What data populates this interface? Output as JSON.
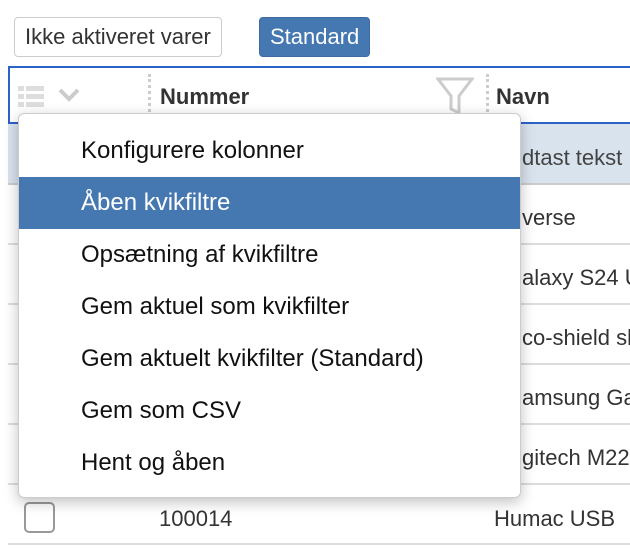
{
  "filters": {
    "inactive_label": "Ikke aktiveret varer",
    "standard_label": "Standard"
  },
  "grid": {
    "columns": [
      {
        "label": "Nummer"
      },
      {
        "label": "Navn"
      }
    ],
    "filter_placeholder_visible": "dtast tekst",
    "rows_visible_name_fragments": [
      "verse",
      "alaxy S24 U",
      "co-shield sl",
      "amsung Ga",
      "gitech M22"
    ],
    "last_row": {
      "number": "100014",
      "name": "Humac USB"
    }
  },
  "menu": {
    "items": [
      "Konfigurere kolonner",
      "Åben kvikfiltre",
      "Opsætning af kvikfiltre",
      "Gem aktuel som kvikfilter",
      "Gem aktuelt kvikfilter (Standard)",
      "Gem som CSV",
      "Hent og åben"
    ],
    "active_index": 1
  },
  "colors": {
    "accent": "#4577b0",
    "focus_border": "#2b62c6",
    "filter_row": "#d9e3ee"
  }
}
